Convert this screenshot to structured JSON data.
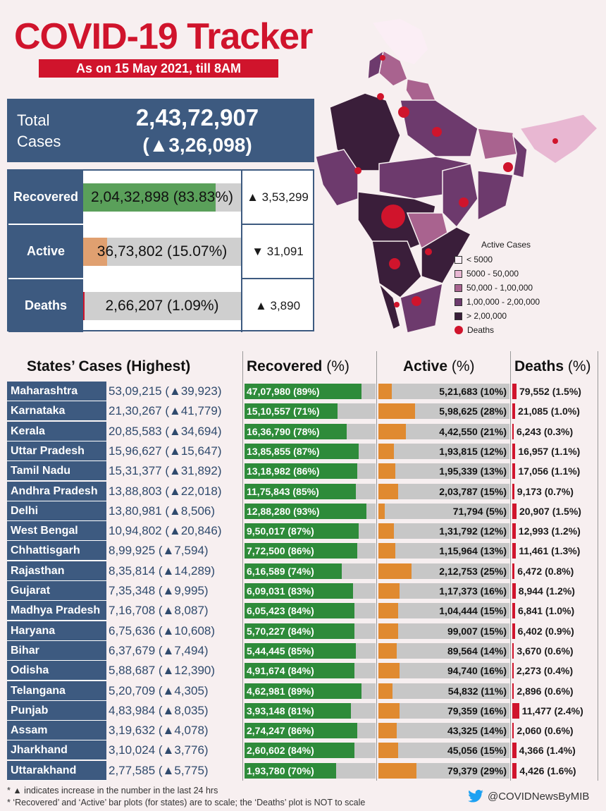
{
  "title": "COVID-19 Tracker",
  "subtitle": "As on 15 May 2021, till 8AM",
  "total": {
    "label_line1": "Total",
    "label_line2": "Cases",
    "value": "2,43,72,907",
    "delta": "(▲3,26,098)"
  },
  "summary": [
    {
      "label": "Recovered",
      "text": "2,04,32,898 (83.83%)",
      "pct": 83.83,
      "color": "#5aa05a",
      "delta": "▲ 3,53,299"
    },
    {
      "label": "Active",
      "text": "36,73,802 (15.07%)",
      "pct": 15.07,
      "color": "#e0a070",
      "delta": "▼ 31,091"
    },
    {
      "label": "Deaths",
      "text": "2,66,207 (1.09%)",
      "pct": 1.09,
      "color": "#d0142c",
      "delta": "▲ 3,890"
    }
  ],
  "legend": {
    "title": "Active Cases",
    "items": [
      {
        "label": "< 5000",
        "color": "#fbeef5"
      },
      {
        "label": "5000 - 50,000",
        "color": "#e8b7d2"
      },
      {
        "label": "50,000 - 1,00,000",
        "color": "#a9638f"
      },
      {
        "label": "1,00,000 - 2,00,000",
        "color": "#6d3a6d"
      },
      {
        "label": "> 2,00,000",
        "color": "#3a1e3a"
      }
    ],
    "deaths_label": "Deaths"
  },
  "table_headers": {
    "states": "States’ Cases (Highest)",
    "recovered": "Recovered",
    "active": "Active",
    "deaths": "Deaths",
    "unit": "(%)"
  },
  "states": [
    {
      "name": "Maharashtra",
      "cases": "53,09,215 (▲39,923)",
      "recovered": "47,07,980 (89%)",
      "rec_pct": 89,
      "active": "5,21,683 (10%)",
      "act_pct": 10,
      "deaths": "79,552 (1.5%)",
      "death_pct": 1.5
    },
    {
      "name": "Karnataka",
      "cases": "21,30,267 (▲41,779)",
      "recovered": "15,10,557 (71%)",
      "rec_pct": 71,
      "active": "5,98,625 (28%)",
      "act_pct": 28,
      "deaths": "21,085 (1.0%)",
      "death_pct": 1.0
    },
    {
      "name": "Kerala",
      "cases": "20,85,583 (▲34,694)",
      "recovered": "16,36,790 (78%)",
      "rec_pct": 78,
      "active": "4,42,550 (21%)",
      "act_pct": 21,
      "deaths": "6,243 (0.3%)",
      "death_pct": 0.3
    },
    {
      "name": "Uttar Pradesh",
      "cases": "15,96,627 (▲15,647)",
      "recovered": "13,85,855 (87%)",
      "rec_pct": 87,
      "active": "1,93,815 (12%)",
      "act_pct": 12,
      "deaths": "16,957 (1.1%)",
      "death_pct": 1.1
    },
    {
      "name": "Tamil Nadu",
      "cases": "15,31,377 (▲31,892)",
      "recovered": "13,18,982 (86%)",
      "rec_pct": 86,
      "active": "1,95,339 (13%)",
      "act_pct": 13,
      "deaths": "17,056 (1.1%)",
      "death_pct": 1.1
    },
    {
      "name": "Andhra Pradesh",
      "cases": "13,88,803 (▲22,018)",
      "recovered": "11,75,843 (85%)",
      "rec_pct": 85,
      "active": "2,03,787 (15%)",
      "act_pct": 15,
      "deaths": "9,173 (0.7%)",
      "death_pct": 0.7
    },
    {
      "name": "Delhi",
      "cases": "13,80,981 (▲8,506)",
      "recovered": "12,88,280 (93%)",
      "rec_pct": 93,
      "active": "71,794 (5%)",
      "act_pct": 5,
      "deaths": "20,907 (1.5%)",
      "death_pct": 1.5
    },
    {
      "name": "West Bengal",
      "cases": "10,94,802 (▲20,846)",
      "recovered": "9,50,017 (87%)",
      "rec_pct": 87,
      "active": "1,31,792 (12%)",
      "act_pct": 12,
      "deaths": "12,993 (1.2%)",
      "death_pct": 1.2
    },
    {
      "name": "Chhattisgarh",
      "cases": "8,99,925 (▲7,594)",
      "recovered": "7,72,500 (86%)",
      "rec_pct": 86,
      "active": "1,15,964 (13%)",
      "act_pct": 13,
      "deaths": "11,461 (1.3%)",
      "death_pct": 1.3
    },
    {
      "name": "Rajasthan",
      "cases": "8,35,814 (▲14,289)",
      "recovered": "6,16,589 (74%)",
      "rec_pct": 74,
      "active": "2,12,753 (25%)",
      "act_pct": 25,
      "deaths": "6,472 (0.8%)",
      "death_pct": 0.8
    },
    {
      "name": "Gujarat",
      "cases": "7,35,348 (▲9,995)",
      "recovered": "6,09,031 (83%)",
      "rec_pct": 83,
      "active": "1,17,373 (16%)",
      "act_pct": 16,
      "deaths": "8,944 (1.2%)",
      "death_pct": 1.2
    },
    {
      "name": "Madhya Pradesh",
      "cases": "7,16,708 (▲8,087)",
      "recovered": "6,05,423 (84%)",
      "rec_pct": 84,
      "active": "1,04,444 (15%)",
      "act_pct": 15,
      "deaths": "6,841 (1.0%)",
      "death_pct": 1.0
    },
    {
      "name": "Haryana",
      "cases": "6,75,636 (▲10,608)",
      "recovered": "5,70,227 (84%)",
      "rec_pct": 84,
      "active": "99,007 (15%)",
      "act_pct": 15,
      "deaths": "6,402 (0.9%)",
      "death_pct": 0.9
    },
    {
      "name": "Bihar",
      "cases": "6,37,679 (▲7,494)",
      "recovered": "5,44,445 (85%)",
      "rec_pct": 85,
      "active": "89,564 (14%)",
      "act_pct": 14,
      "deaths": "3,670 (0.6%)",
      "death_pct": 0.6
    },
    {
      "name": "Odisha",
      "cases": "5,88,687 (▲12,390)",
      "recovered": "4,91,674 (84%)",
      "rec_pct": 84,
      "active": "94,740 (16%)",
      "act_pct": 16,
      "deaths": "2,273 (0.4%)",
      "death_pct": 0.4
    },
    {
      "name": "Telangana",
      "cases": "5,20,709 (▲4,305)",
      "recovered": "4,62,981 (89%)",
      "rec_pct": 89,
      "active": "54,832 (11%)",
      "act_pct": 11,
      "deaths": "2,896 (0.6%)",
      "death_pct": 0.6
    },
    {
      "name": "Punjab",
      "cases": "4,83,984 (▲8,035)",
      "recovered": "3,93,148 (81%)",
      "rec_pct": 81,
      "active": "79,359 (16%)",
      "act_pct": 16,
      "deaths": "11,477 (2.4%)",
      "death_pct": 2.4
    },
    {
      "name": "Assam",
      "cases": "3,19,632 (▲4,078)",
      "recovered": "2,74,247 (86%)",
      "rec_pct": 86,
      "active": "43,325 (14%)",
      "act_pct": 14,
      "deaths": "2,060 (0.6%)",
      "death_pct": 0.6
    },
    {
      "name": "Jharkhand",
      "cases": "3,10,024 (▲3,776)",
      "recovered": "2,60,602 (84%)",
      "rec_pct": 84,
      "active": "45,056 (15%)",
      "act_pct": 15,
      "deaths": "4,366 (1.4%)",
      "death_pct": 1.4
    },
    {
      "name": "Uttarakhand",
      "cases": "2,77,585 (▲5,775)",
      "recovered": "1,93,780 (70%)",
      "rec_pct": 70,
      "active": "79,379 (29%)",
      "act_pct": 29,
      "deaths": "4,426 (1.6%)",
      "death_pct": 1.6
    }
  ],
  "colors": {
    "recovered": "#2e8b3a",
    "active": "#e08a30",
    "deaths": "#d0142c",
    "bar_bg": "#c7c7c7",
    "header_blue": "#3d5a80"
  },
  "footnotes": [
    "* ▲ indicates increase in the number in the last 24 hrs",
    "* ‘Recovered’ and ‘Active’ bar plots (for states) are to scale; the ‘Deaths’ plot is NOT to scale"
  ],
  "handle": "@COVIDNewsByMIB"
}
